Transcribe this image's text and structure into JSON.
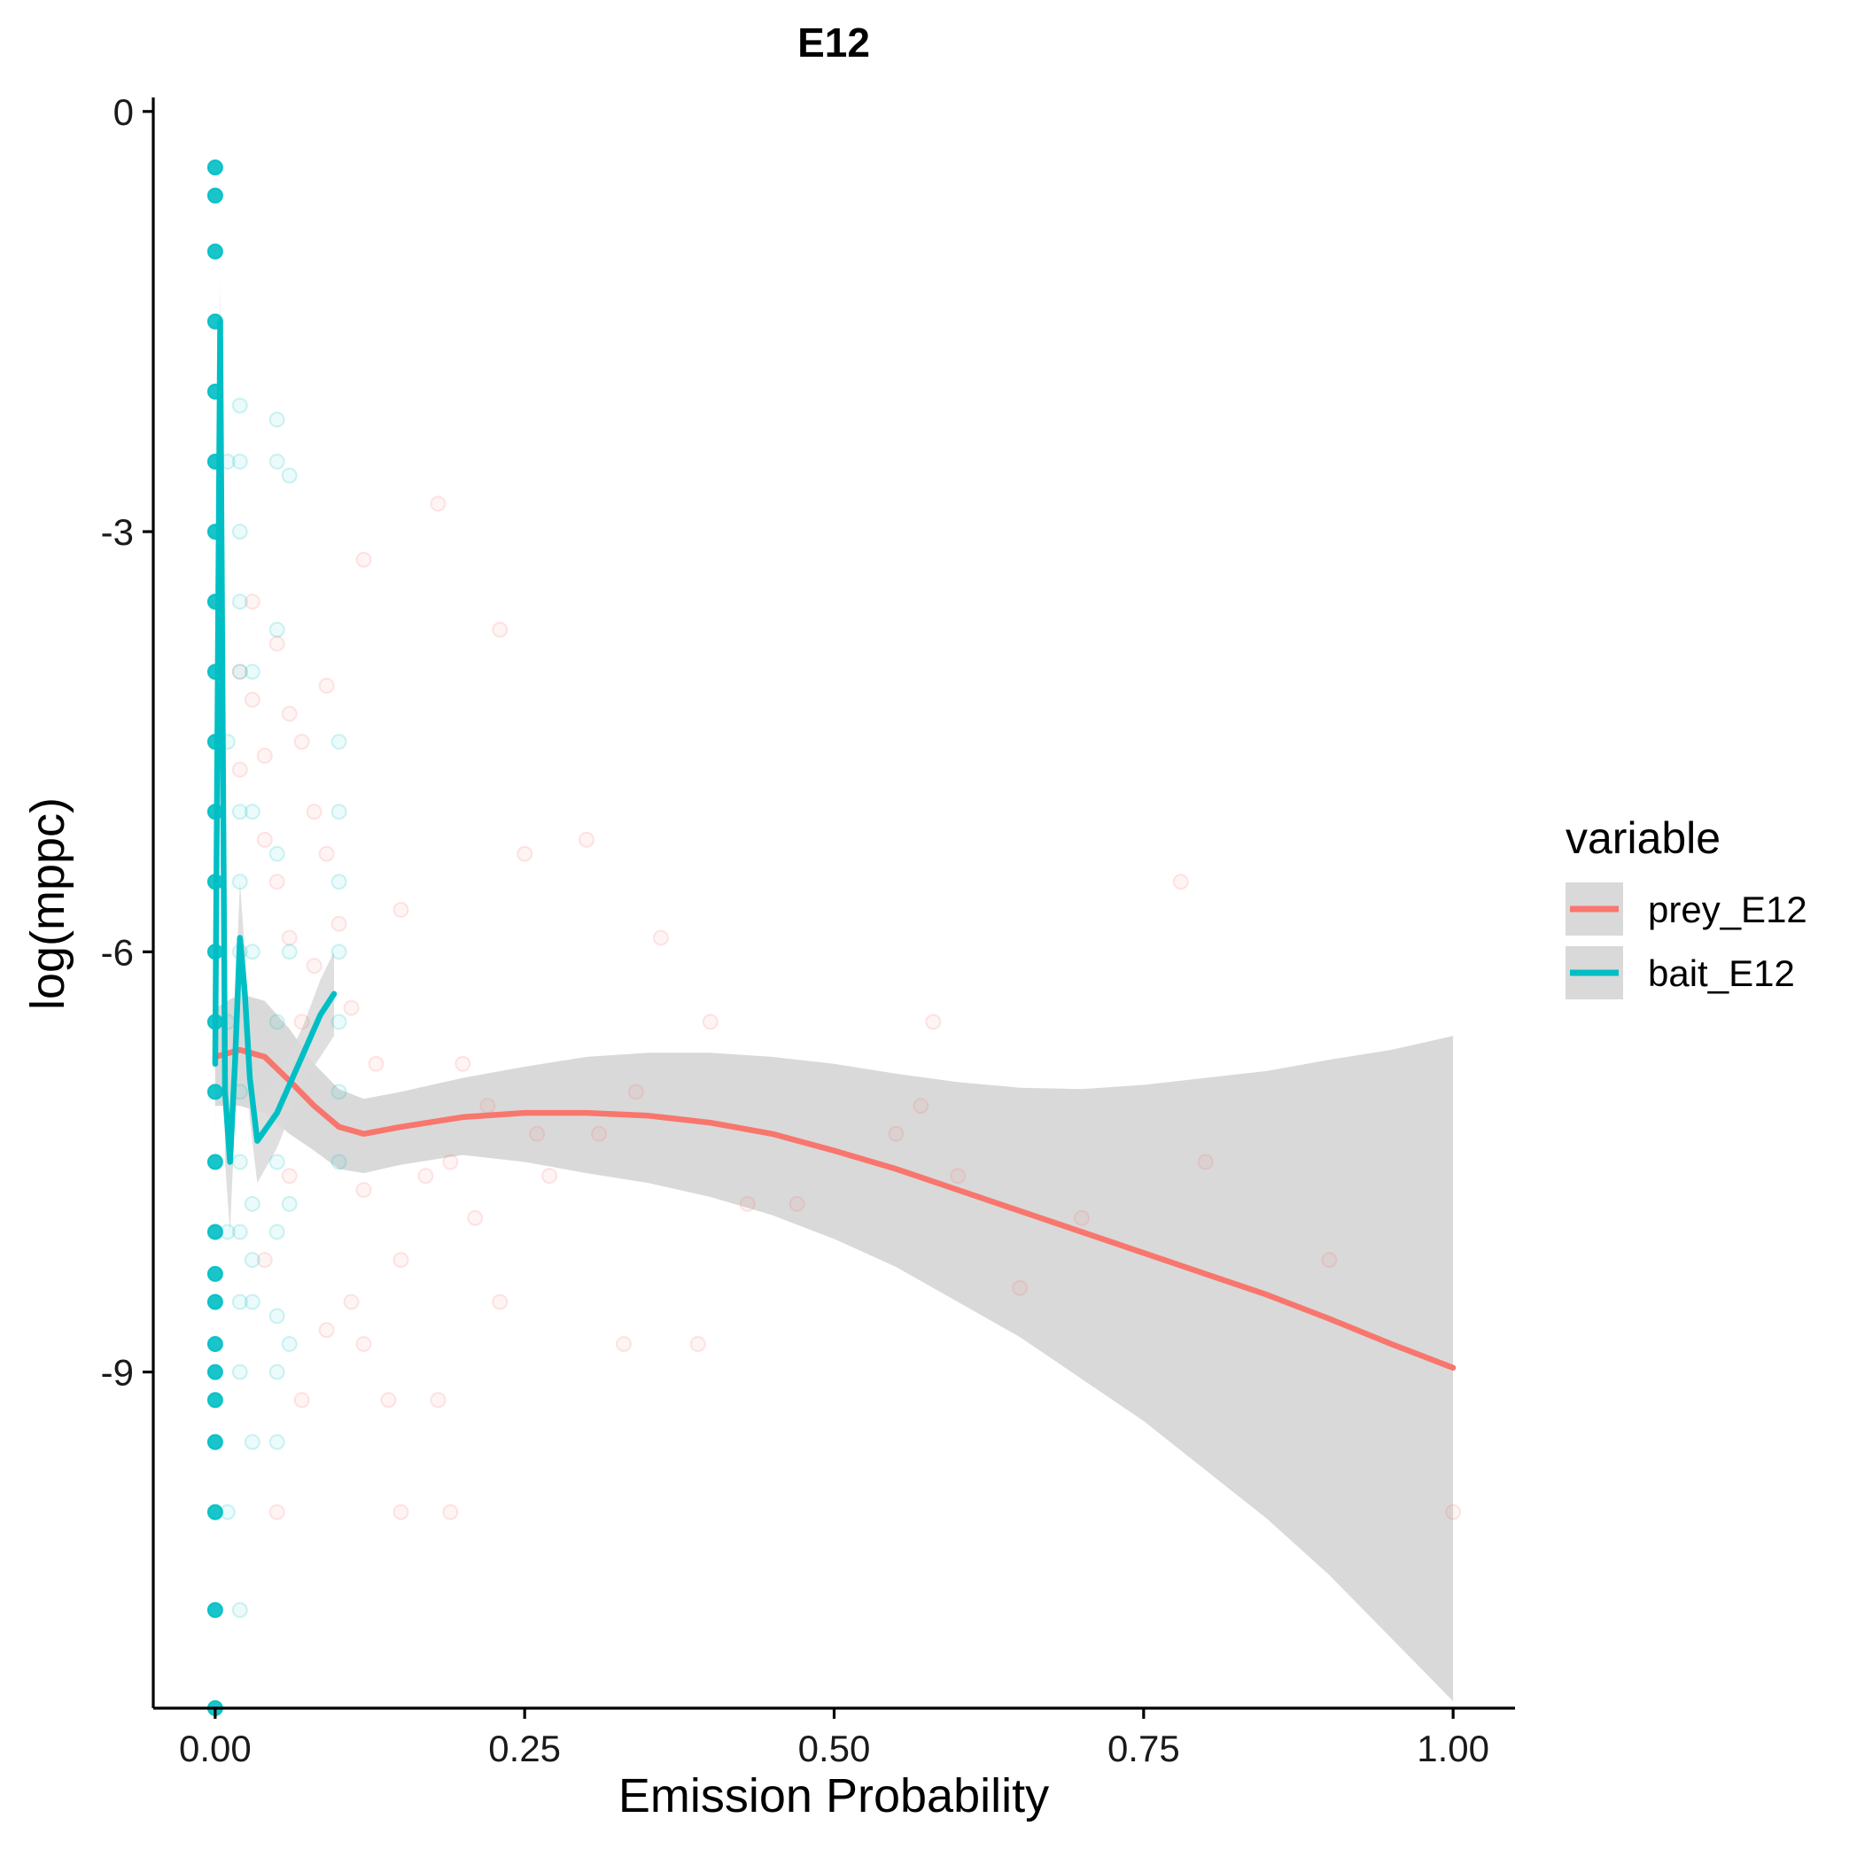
{
  "chart_data": {
    "type": "scatter",
    "title": "E12",
    "xlabel": "Emission Probability",
    "ylabel": "log(mppc)",
    "xlim": [
      -0.05,
      1.05
    ],
    "ylim": [
      -11.4,
      0.1
    ],
    "x_ticks": [
      0,
      0.25,
      0.5,
      0.75,
      1.0
    ],
    "x_tick_labels": [
      "0.00",
      "0.25",
      "0.50",
      "0.75",
      "1.00"
    ],
    "y_ticks": [
      0,
      -3,
      -6,
      -9
    ],
    "y_tick_labels": [
      "0",
      "-3",
      "-6",
      "-9"
    ],
    "grid": false,
    "legend": {
      "title": "variable",
      "position": "right",
      "entries": [
        "prey_E12",
        "bait_E12"
      ]
    },
    "colors": {
      "prey": "#F8766D",
      "bait": "#00BFC4",
      "band": "#D9D9D9"
    },
    "series": [
      {
        "name": "prey_E12",
        "color": "#F8766D",
        "smooth_x": [
          0.0,
          0.02,
          0.04,
          0.06,
          0.08,
          0.1,
          0.12,
          0.15,
          0.2,
          0.25,
          0.3,
          0.35,
          0.4,
          0.45,
          0.5,
          0.55,
          0.6,
          0.65,
          0.7,
          0.75,
          0.8,
          0.85,
          0.9,
          0.95,
          1.0
        ],
        "smooth_y": [
          -6.75,
          -6.7,
          -6.75,
          -6.92,
          -7.1,
          -7.25,
          -7.3,
          -7.25,
          -7.18,
          -7.15,
          -7.15,
          -7.17,
          -7.22,
          -7.3,
          -7.42,
          -7.55,
          -7.7,
          -7.85,
          -8.0,
          -8.15,
          -8.3,
          -8.45,
          -8.62,
          -8.8,
          -8.97
        ],
        "band_upper": [
          -6.4,
          -6.3,
          -6.35,
          -6.55,
          -6.8,
          -6.98,
          -7.05,
          -7.0,
          -6.9,
          -6.82,
          -6.75,
          -6.72,
          -6.72,
          -6.75,
          -6.8,
          -6.87,
          -6.93,
          -6.97,
          -6.98,
          -6.95,
          -6.9,
          -6.85,
          -6.77,
          -6.7,
          -6.6
        ],
        "band_lower": [
          -7.1,
          -7.1,
          -7.15,
          -7.3,
          -7.42,
          -7.55,
          -7.58,
          -7.52,
          -7.45,
          -7.5,
          -7.58,
          -7.65,
          -7.75,
          -7.88,
          -8.05,
          -8.25,
          -8.5,
          -8.75,
          -9.05,
          -9.35,
          -9.7,
          -10.05,
          -10.45,
          -10.9,
          -11.35
        ],
        "points": [
          [
            0.02,
            -4.0
          ],
          [
            0.02,
            -4.7
          ],
          [
            0.03,
            -3.5
          ],
          [
            0.03,
            -4.2
          ],
          [
            0.04,
            -5.2
          ],
          [
            0.04,
            -4.6
          ],
          [
            0.05,
            -3.8
          ],
          [
            0.05,
            -5.5
          ],
          [
            0.06,
            -4.3
          ],
          [
            0.06,
            -5.9
          ],
          [
            0.07,
            -4.5
          ],
          [
            0.07,
            -6.5
          ],
          [
            0.08,
            -5.0
          ],
          [
            0.08,
            -6.1
          ],
          [
            0.09,
            -4.1
          ],
          [
            0.09,
            -5.3
          ],
          [
            0.1,
            -5.8
          ],
          [
            0.11,
            -6.4
          ],
          [
            0.12,
            -3.2
          ],
          [
            0.13,
            -6.8
          ],
          [
            0.15,
            -5.7
          ],
          [
            0.18,
            -2.8
          ],
          [
            0.19,
            -7.5
          ],
          [
            0.22,
            -7.1
          ],
          [
            0.23,
            -3.7
          ],
          [
            0.25,
            -5.3
          ],
          [
            0.27,
            -7.6
          ],
          [
            0.3,
            -5.2
          ],
          [
            0.31,
            -7.3
          ],
          [
            0.34,
            -7.0
          ],
          [
            0.36,
            -5.9
          ],
          [
            0.4,
            -6.5
          ],
          [
            0.43,
            -7.8
          ],
          [
            0.47,
            -7.8
          ],
          [
            0.55,
            -7.3
          ],
          [
            0.57,
            -7.1
          ],
          [
            0.58,
            -6.5
          ],
          [
            0.6,
            -7.6
          ],
          [
            0.65,
            -8.4
          ],
          [
            0.7,
            -7.9
          ],
          [
            0.78,
            -5.5
          ],
          [
            0.8,
            -7.5
          ],
          [
            0.9,
            -8.2
          ],
          [
            1.0,
            -10.0
          ],
          [
            0.04,
            -8.2
          ],
          [
            0.06,
            -7.6
          ],
          [
            0.09,
            -8.7
          ],
          [
            0.12,
            -7.7
          ],
          [
            0.15,
            -8.2
          ],
          [
            0.18,
            -9.2
          ],
          [
            0.21,
            -7.9
          ],
          [
            0.23,
            -8.5
          ],
          [
            0.26,
            -7.3
          ],
          [
            0.33,
            -8.8
          ],
          [
            0.39,
            -8.8
          ],
          [
            0.15,
            -10.0
          ],
          [
            0.19,
            -10.0
          ],
          [
            0.05,
            -10.0
          ],
          [
            0.07,
            -9.2
          ],
          [
            0.11,
            -8.5
          ],
          [
            0.14,
            -9.2
          ],
          [
            0.17,
            -7.6
          ],
          [
            0.2,
            -6.8
          ],
          [
            0.12,
            -8.8
          ]
        ]
      },
      {
        "name": "bait_E12",
        "color": "#00BFC4",
        "smooth_x": [
          0.0,
          0.004,
          0.008,
          0.012,
          0.016,
          0.02,
          0.024,
          0.028,
          0.034,
          0.05,
          0.07,
          0.085,
          0.096
        ],
        "smooth_y": [
          -6.8,
          -1.5,
          -7.0,
          -7.5,
          -6.8,
          -5.9,
          -6.3,
          -6.9,
          -7.35,
          -7.15,
          -6.75,
          -6.45,
          -6.3
        ],
        "band_upper": [
          -6.3,
          -1.2,
          -6.5,
          -7.0,
          -6.4,
          -5.5,
          -6.0,
          -6.6,
          -7.05,
          -6.9,
          -6.55,
          -6.2,
          -6.0
        ],
        "band_lower": [
          -7.3,
          -1.8,
          -7.5,
          -8.0,
          -7.2,
          -6.3,
          -6.6,
          -7.2,
          -7.65,
          -7.4,
          -6.95,
          -6.75,
          -6.6
        ],
        "points": [
          [
            0.0,
            -0.4
          ],
          [
            0.0,
            -0.6
          ],
          [
            0.0,
            -1.0
          ],
          [
            0.0,
            -1.5
          ],
          [
            0.0,
            -2.0
          ],
          [
            0.0,
            -2.5
          ],
          [
            0.0,
            -3.0
          ],
          [
            0.0,
            -3.5
          ],
          [
            0.0,
            -4.0
          ],
          [
            0.0,
            -4.5
          ],
          [
            0.0,
            -5.0
          ],
          [
            0.0,
            -5.5
          ],
          [
            0.0,
            -6.0
          ],
          [
            0.0,
            -6.5
          ],
          [
            0.0,
            -7.0
          ],
          [
            0.0,
            -7.5
          ],
          [
            0.0,
            -8.0
          ],
          [
            0.0,
            -8.3
          ],
          [
            0.0,
            -8.5
          ],
          [
            0.0,
            -8.8
          ],
          [
            0.0,
            -9.0
          ],
          [
            0.0,
            -9.2
          ],
          [
            0.0,
            -9.5
          ],
          [
            0.0,
            -10.0
          ],
          [
            0.0,
            -10.7
          ],
          [
            0.0,
            -11.4
          ],
          [
            0.01,
            -2.5
          ],
          [
            0.01,
            -4.5
          ],
          [
            0.01,
            -6.5
          ],
          [
            0.01,
            -8.0
          ],
          [
            0.01,
            -10.0
          ],
          [
            0.02,
            -2.1
          ],
          [
            0.02,
            -2.5
          ],
          [
            0.02,
            -3.0
          ],
          [
            0.02,
            -3.5
          ],
          [
            0.02,
            -4.0
          ],
          [
            0.02,
            -5.0
          ],
          [
            0.02,
            -5.5
          ],
          [
            0.02,
            -6.0
          ],
          [
            0.02,
            -7.0
          ],
          [
            0.02,
            -7.5
          ],
          [
            0.02,
            -8.0
          ],
          [
            0.02,
            -8.5
          ],
          [
            0.02,
            -9.0
          ],
          [
            0.02,
            -10.7
          ],
          [
            0.03,
            -4.0
          ],
          [
            0.03,
            -5.0
          ],
          [
            0.03,
            -6.0
          ],
          [
            0.03,
            -7.8
          ],
          [
            0.03,
            -8.2
          ],
          [
            0.03,
            -8.5
          ],
          [
            0.03,
            -9.5
          ],
          [
            0.05,
            -2.2
          ],
          [
            0.05,
            -2.5
          ],
          [
            0.05,
            -3.7
          ],
          [
            0.05,
            -5.3
          ],
          [
            0.05,
            -6.5
          ],
          [
            0.05,
            -7.5
          ],
          [
            0.05,
            -8.0
          ],
          [
            0.05,
            -8.6
          ],
          [
            0.05,
            -9.0
          ],
          [
            0.05,
            -9.5
          ],
          [
            0.06,
            -2.6
          ],
          [
            0.06,
            -6.0
          ],
          [
            0.06,
            -7.8
          ],
          [
            0.06,
            -8.8
          ],
          [
            0.1,
            -4.5
          ],
          [
            0.1,
            -5.0
          ],
          [
            0.1,
            -5.5
          ],
          [
            0.1,
            -6.0
          ],
          [
            0.1,
            -6.5
          ],
          [
            0.1,
            -7.0
          ],
          [
            0.1,
            -7.5
          ]
        ]
      }
    ]
  }
}
